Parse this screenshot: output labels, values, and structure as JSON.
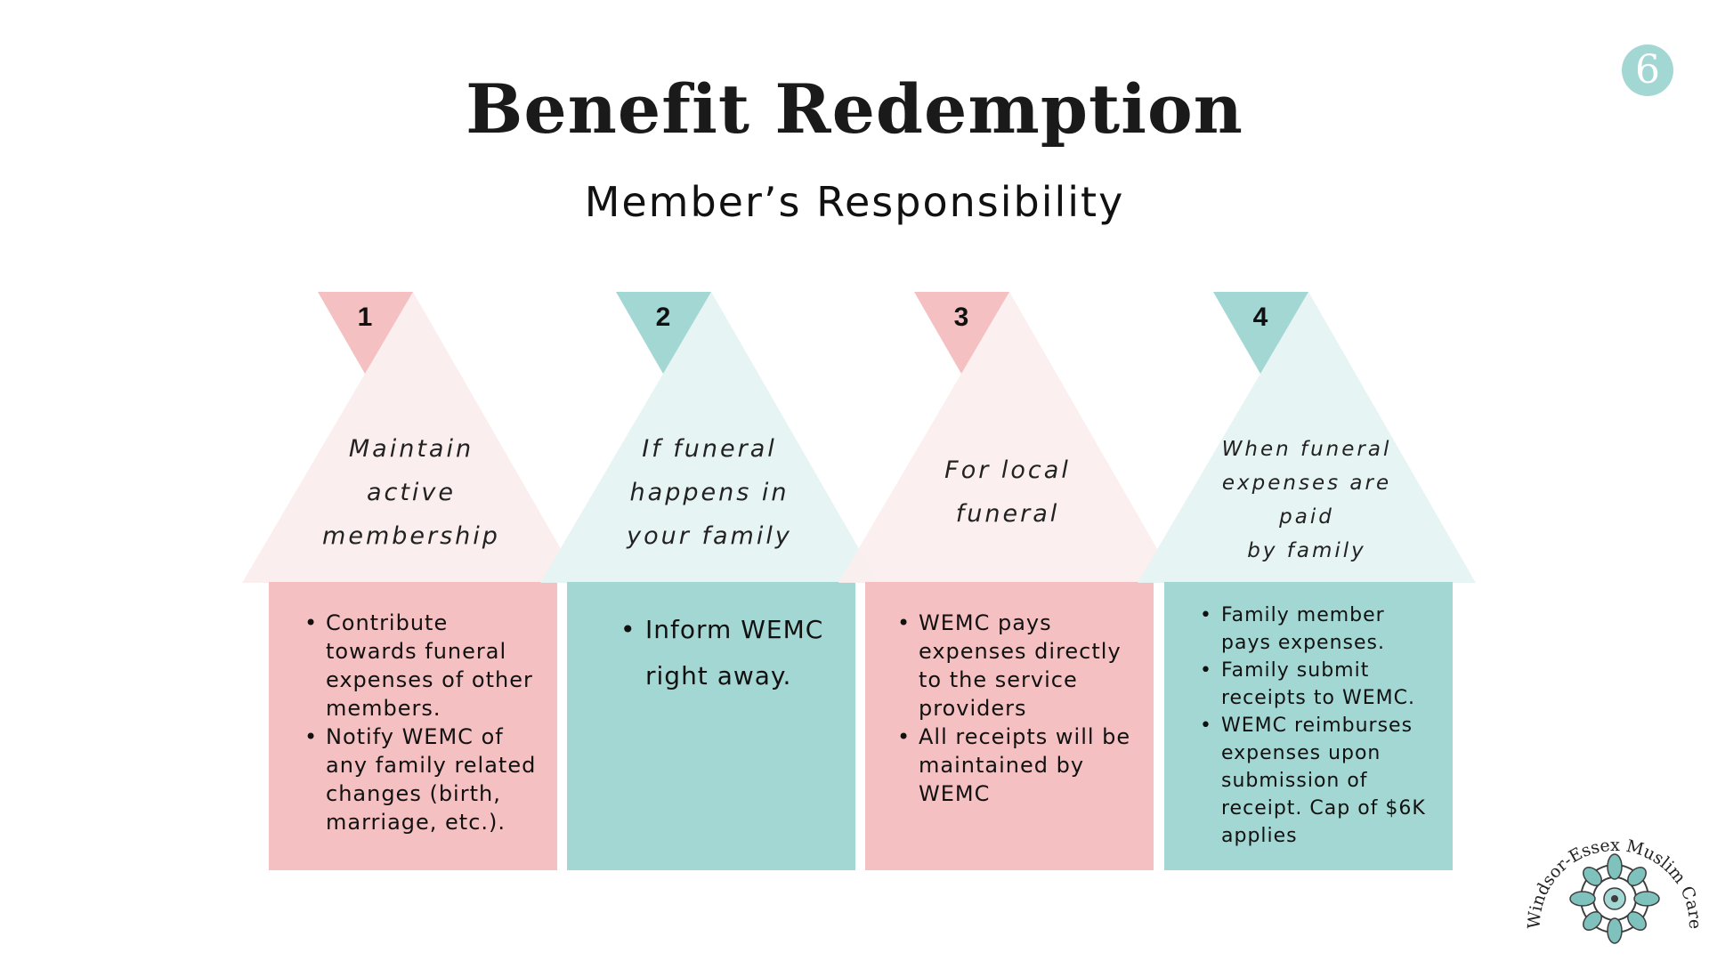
{
  "page_number": "6",
  "title": "Benefit Redemption",
  "subtitle": "Member’s Responsibility",
  "colors": {
    "pink": "#f5c0c1",
    "pink_light": "#fbeeee",
    "teal": "#a3d7d3",
    "teal_light": "#e5f3f2"
  },
  "steps": [
    {
      "number": "1",
      "title_lines": [
        "Maintain",
        "active",
        "membership"
      ],
      "bullets": [
        "Contribute towards funeral expenses of other members.",
        "Notify WEMC of any family related changes (birth, marriage, etc.)."
      ]
    },
    {
      "number": "2",
      "title_lines": [
        "If funeral",
        "happens in",
        "your family"
      ],
      "bullets": [
        "Inform WEMC right away."
      ]
    },
    {
      "number": "3",
      "title_lines": [
        "For local",
        "funeral"
      ],
      "bullets": [
        "WEMC pays expenses directly to the service providers",
        "All receipts will be maintained by WEMC"
      ]
    },
    {
      "number": "4",
      "title_lines": [
        "When funeral",
        "expenses are",
        "paid",
        "by family"
      ],
      "bullets": [
        "Family member pays expenses.",
        "Family submit receipts to WEMC.",
        "WEMC reimburses expenses upon submission of receipt. Cap of $6K applies"
      ]
    }
  ],
  "logo": {
    "text": "Windsor-Essex Muslim Care",
    "icon": "mandala-icon"
  }
}
